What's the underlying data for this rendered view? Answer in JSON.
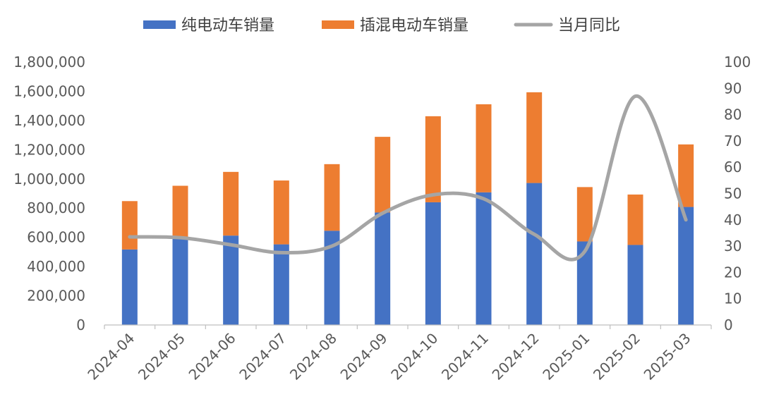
{
  "chart_data": {
    "type": "bar",
    "stacked": true,
    "categories": [
      "2024-04",
      "2024-05",
      "2024-06",
      "2024-07",
      "2024-08",
      "2024-09",
      "2024-10",
      "2024-11",
      "2024-12",
      "2025-01",
      "2025-02",
      "2025-03"
    ],
    "series": [
      {
        "name": "纯电动车销量",
        "kind": "bar",
        "axis": "left",
        "color": "#4472C4",
        "values": [
          517000,
          597000,
          612000,
          552000,
          645000,
          770000,
          840000,
          908000,
          972000,
          572000,
          548000,
          808000
        ]
      },
      {
        "name": "插混电动车销量",
        "kind": "bar",
        "axis": "left",
        "color": "#ED7D31",
        "values": [
          331000,
          356000,
          436000,
          437000,
          456000,
          518000,
          589000,
          603000,
          621000,
          372000,
          345000,
          428000
        ]
      },
      {
        "name": "当月同比",
        "kind": "line",
        "axis": "right",
        "color": "#A5A5A5",
        "values": [
          33.5,
          33.2,
          30.5,
          27.5,
          30.0,
          42.5,
          49.5,
          48.0,
          34.5,
          28.0,
          87.0,
          40.0
        ]
      }
    ],
    "ylim_left": [
      0,
      1800000
    ],
    "yticks_left": [
      "0",
      "200,000",
      "400,000",
      "600,000",
      "800,000",
      "1,000,000",
      "1,200,000",
      "1,400,000",
      "1,600,000",
      "1,800,000"
    ],
    "ylim_right": [
      0,
      100
    ],
    "yticks_right": [
      "0",
      "10",
      "20",
      "30",
      "40",
      "50",
      "60",
      "70",
      "80",
      "90",
      "100"
    ],
    "legend_position": "top-center",
    "grid": false
  }
}
